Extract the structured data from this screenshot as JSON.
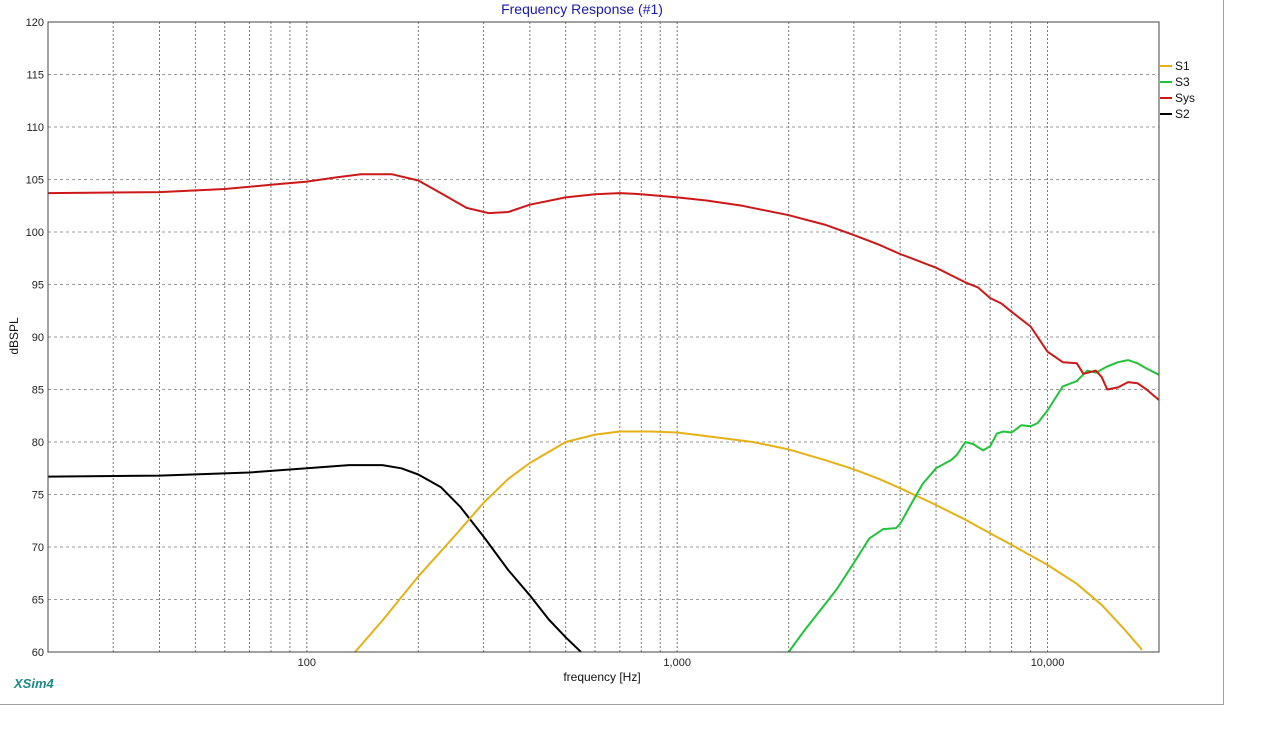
{
  "app": {
    "brand": "XSim4"
  },
  "chart_data": {
    "type": "line",
    "title": "Frequency Response (#1)",
    "xlabel": "frequency [Hz]",
    "ylabel": "dBSPL",
    "xscale": "log",
    "xlim": [
      20,
      20000
    ],
    "ylim": [
      60,
      120
    ],
    "yticks": [
      60,
      65,
      70,
      75,
      80,
      85,
      90,
      95,
      100,
      105,
      110,
      115,
      120
    ],
    "xticks_labeled": [
      {
        "value": 100,
        "label": "100"
      },
      {
        "value": 1000,
        "label": "1,000"
      },
      {
        "value": 10000,
        "label": "10,000"
      }
    ],
    "grid": true,
    "legend_position": "right",
    "series": [
      {
        "name": "S1",
        "color": "#e6b116",
        "points": [
          [
            135,
            60
          ],
          [
            160,
            63
          ],
          [
            200,
            67.2
          ],
          [
            250,
            71
          ],
          [
            300,
            74.2
          ],
          [
            350,
            76.5
          ],
          [
            400,
            78
          ],
          [
            500,
            80
          ],
          [
            600,
            80.7
          ],
          [
            700,
            81
          ],
          [
            850,
            81
          ],
          [
            1000,
            80.9
          ],
          [
            1300,
            80.4
          ],
          [
            1600,
            80
          ],
          [
            2000,
            79.3
          ],
          [
            2500,
            78.3
          ],
          [
            3000,
            77.4
          ],
          [
            3500,
            76.5
          ],
          [
            4000,
            75.6
          ],
          [
            5000,
            74
          ],
          [
            6000,
            72.6
          ],
          [
            7000,
            71.3
          ],
          [
            8000,
            70.2
          ],
          [
            10000,
            68.3
          ],
          [
            12000,
            66.5
          ],
          [
            14000,
            64.5
          ],
          [
            16000,
            62.3
          ],
          [
            18000,
            60.2
          ]
        ]
      },
      {
        "name": "S3",
        "color": "#22c23a",
        "points": [
          [
            2000,
            60
          ],
          [
            2200,
            62
          ],
          [
            2500,
            64.5
          ],
          [
            2700,
            66
          ],
          [
            3000,
            68.5
          ],
          [
            3300,
            70.8
          ],
          [
            3600,
            71.7
          ],
          [
            3900,
            71.8
          ],
          [
            4000,
            72.2
          ],
          [
            4300,
            74.2
          ],
          [
            4600,
            76
          ],
          [
            5000,
            77.5
          ],
          [
            5500,
            78.3
          ],
          [
            5700,
            78.8
          ],
          [
            6000,
            80
          ],
          [
            6300,
            79.8
          ],
          [
            6700,
            79.2
          ],
          [
            7000,
            79.6
          ],
          [
            7300,
            80.8
          ],
          [
            7600,
            81
          ],
          [
            8000,
            80.9
          ],
          [
            8500,
            81.6
          ],
          [
            9000,
            81.5
          ],
          [
            9400,
            81.8
          ],
          [
            10000,
            83
          ],
          [
            11000,
            85.3
          ],
          [
            12000,
            85.8
          ],
          [
            12800,
            86.8
          ],
          [
            13500,
            86.6
          ],
          [
            14500,
            87.2
          ],
          [
            15500,
            87.6
          ],
          [
            16500,
            87.8
          ],
          [
            17500,
            87.5
          ],
          [
            18500,
            87
          ],
          [
            20000,
            86.4
          ]
        ]
      },
      {
        "name": "Sys",
        "color": "#cc1818",
        "points": [
          [
            20,
            103.7
          ],
          [
            40,
            103.8
          ],
          [
            60,
            104.1
          ],
          [
            80,
            104.5
          ],
          [
            100,
            104.8
          ],
          [
            120,
            105.2
          ],
          [
            140,
            105.5
          ],
          [
            170,
            105.5
          ],
          [
            200,
            104.9
          ],
          [
            230,
            103.7
          ],
          [
            270,
            102.3
          ],
          [
            310,
            101.8
          ],
          [
            350,
            101.9
          ],
          [
            400,
            102.6
          ],
          [
            500,
            103.3
          ],
          [
            600,
            103.6
          ],
          [
            700,
            103.7
          ],
          [
            800,
            103.6
          ],
          [
            1000,
            103.3
          ],
          [
            1200,
            103
          ],
          [
            1500,
            102.5
          ],
          [
            2000,
            101.6
          ],
          [
            2500,
            100.7
          ],
          [
            3000,
            99.7
          ],
          [
            3500,
            98.8
          ],
          [
            4000,
            97.9
          ],
          [
            5000,
            96.6
          ],
          [
            6000,
            95.2
          ],
          [
            6500,
            94.7
          ],
          [
            7000,
            93.7
          ],
          [
            7500,
            93.2
          ],
          [
            8000,
            92.4
          ],
          [
            9000,
            91
          ],
          [
            10000,
            88.6
          ],
          [
            11000,
            87.6
          ],
          [
            12000,
            87.5
          ],
          [
            12500,
            86.5
          ],
          [
            13500,
            86.8
          ],
          [
            14000,
            86.2
          ],
          [
            14500,
            85
          ],
          [
            15500,
            85.2
          ],
          [
            16500,
            85.7
          ],
          [
            17500,
            85.6
          ],
          [
            18500,
            85
          ],
          [
            20000,
            84
          ]
        ]
      },
      {
        "name": "S2",
        "color": "#000000",
        "points": [
          [
            20,
            76.7
          ],
          [
            40,
            76.8
          ],
          [
            70,
            77.1
          ],
          [
            100,
            77.5
          ],
          [
            130,
            77.8
          ],
          [
            160,
            77.8
          ],
          [
            180,
            77.5
          ],
          [
            200,
            76.9
          ],
          [
            230,
            75.7
          ],
          [
            260,
            73.8
          ],
          [
            300,
            71
          ],
          [
            350,
            67.8
          ],
          [
            400,
            65.4
          ],
          [
            450,
            63.1
          ],
          [
            500,
            61.4
          ],
          [
            550,
            60
          ]
        ]
      }
    ]
  }
}
